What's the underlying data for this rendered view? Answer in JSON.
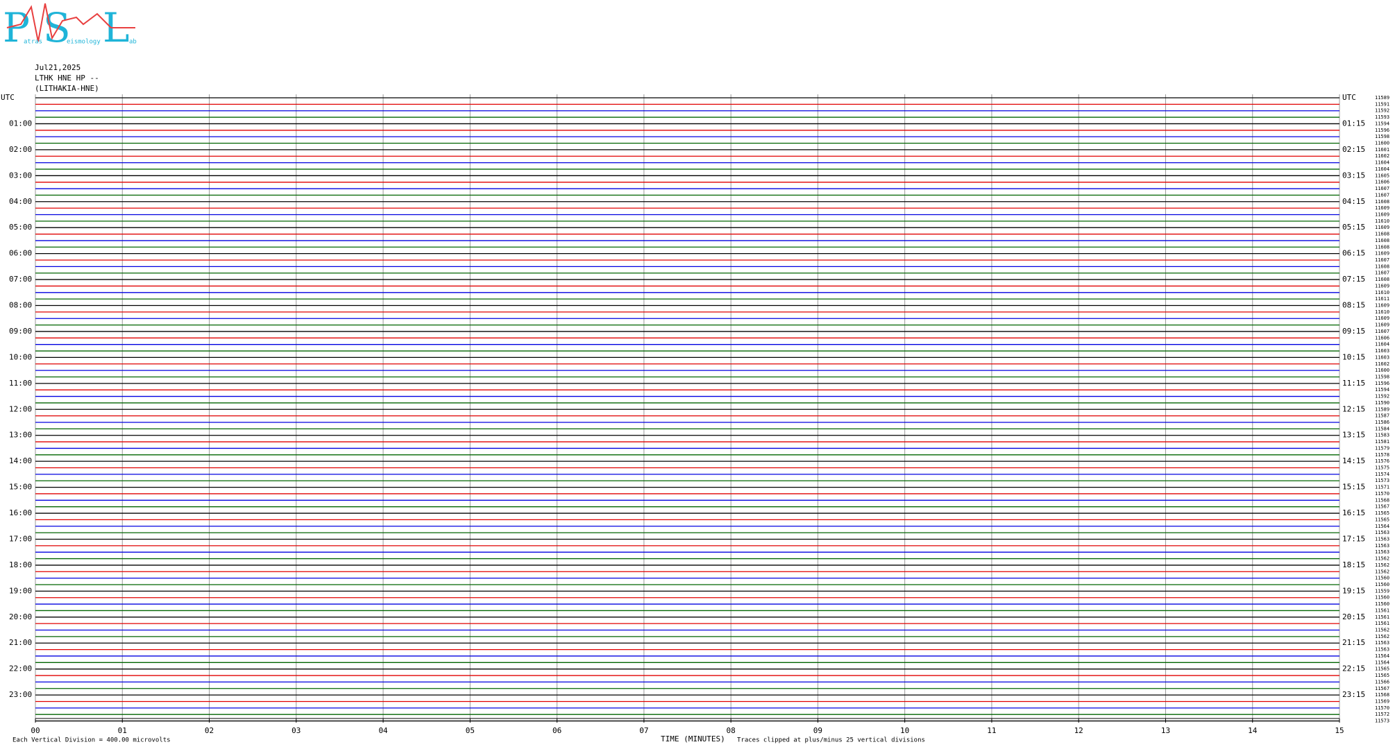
{
  "chart_data": {
    "type": "helicorder",
    "logo": {
      "letters": [
        "P",
        "S",
        "L"
      ],
      "small": [
        "atras",
        "eismology",
        "ab"
      ]
    },
    "title_lines": [
      "Jul21,2025",
      "LTHK HNE HP --",
      "(LITHAKIA-HNE)"
    ],
    "left_labels": [
      "UTC",
      "01:00",
      "02:00",
      "03:00",
      "04:00",
      "05:00",
      "06:00",
      "07:00",
      "08:00",
      "09:00",
      "10:00",
      "11:00",
      "12:00",
      "13:00",
      "14:00",
      "15:00",
      "16:00",
      "17:00",
      "18:00",
      "19:00",
      "20:00",
      "21:00",
      "22:00",
      "23:00"
    ],
    "right_labels": [
      "UTC",
      "01:15",
      "02:15",
      "03:15",
      "04:15",
      "05:15",
      "06:15",
      "07:15",
      "08:15",
      "09:15",
      "10:15",
      "11:15",
      "12:15",
      "13:15",
      "14:15",
      "15:15",
      "16:15",
      "17:15",
      "18:15",
      "19:15",
      "20:15",
      "21:15",
      "22:15",
      "23:15"
    ],
    "row_values": [
      "11589",
      "11591",
      "11592",
      "11593",
      "11594",
      "11596",
      "11598",
      "11600",
      "11601",
      "11602",
      "11604",
      "11604",
      "11605",
      "11606",
      "11607",
      "11607",
      "11608",
      "11609",
      "11609",
      "11610",
      "11609",
      "11608",
      "11608",
      "11608",
      "11609",
      "11607",
      "11608",
      "11607",
      "11608",
      "11609",
      "11610",
      "11611",
      "11609",
      "11610",
      "11609",
      "11609",
      "11607",
      "11606",
      "11604",
      "11603",
      "11603",
      "11602",
      "11600",
      "11598",
      "11596",
      "11594",
      "11592",
      "11590",
      "11589",
      "11587",
      "11586",
      "11584",
      "11583",
      "11581",
      "11579",
      "11578",
      "11576",
      "11575",
      "11574",
      "11573",
      "11571",
      "11570",
      "11568",
      "11567",
      "11565",
      "11565",
      "11564",
      "11563",
      "11563",
      "11563",
      "11563",
      "11562",
      "11562",
      "11562",
      "11560",
      "11560",
      "11559",
      "11560",
      "11560",
      "11561",
      "11561",
      "11561",
      "11562",
      "11562",
      "11563",
      "11563",
      "11564",
      "11564",
      "11565",
      "11565",
      "11566",
      "11567",
      "11568",
      "11569",
      "11570",
      "11572",
      "11573"
    ],
    "trace_colors": [
      "#000000",
      "#e00000",
      "#0000e0",
      "#006400"
    ],
    "x_label": "TIME (MINUTES)",
    "xlim": [
      0,
      15
    ],
    "xticks": [
      {
        "value": 0,
        "label": "00"
      },
      {
        "value": 1,
        "label": "01"
      },
      {
        "value": 2,
        "label": "02"
      },
      {
        "value": 3,
        "label": "03"
      },
      {
        "value": 4,
        "label": "04"
      },
      {
        "value": 5,
        "label": "05"
      },
      {
        "value": 6,
        "label": "06"
      },
      {
        "value": 7,
        "label": "07"
      },
      {
        "value": 8,
        "label": "08"
      },
      {
        "value": 9,
        "label": "09"
      },
      10,
      11,
      12,
      13,
      14,
      15
    ],
    "scale_note": "Each Vertical Division =  400.00 microvolts",
    "clip_note": "Traces clipped at plus/minus 25 vertical divisions",
    "grid": true
  }
}
